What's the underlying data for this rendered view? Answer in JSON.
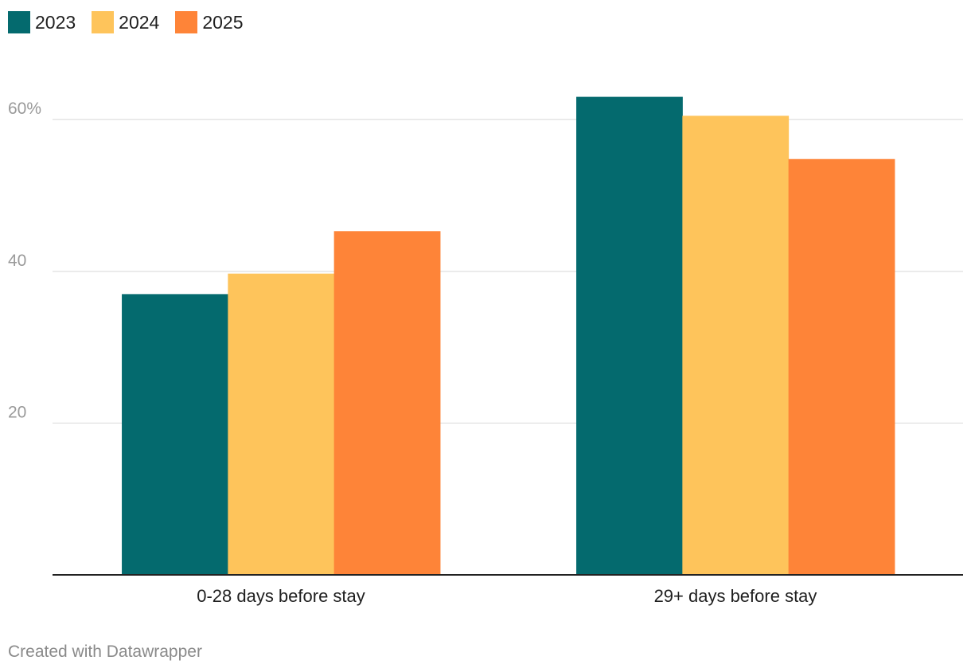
{
  "chart_data": {
    "type": "bar",
    "categories": [
      "0-28 days before stay",
      "29+ days before stay"
    ],
    "series": [
      {
        "name": "2023",
        "color": "#046a6e",
        "values": [
          37,
          63
        ]
      },
      {
        "name": "2024",
        "color": "#fec45b",
        "values": [
          39.7,
          60.5
        ]
      },
      {
        "name": "2025",
        "color": "#fe8438",
        "values": [
          45.3,
          54.8
        ]
      }
    ],
    "yticks": [
      {
        "value": 20,
        "label": "20"
      },
      {
        "value": 40,
        "label": "40"
      },
      {
        "value": 60,
        "label": "60%"
      }
    ],
    "ylim": [
      0,
      66
    ],
    "grid": true,
    "legend_position": "top-left"
  },
  "footer": {
    "credit": "Created with Datawrapper"
  }
}
